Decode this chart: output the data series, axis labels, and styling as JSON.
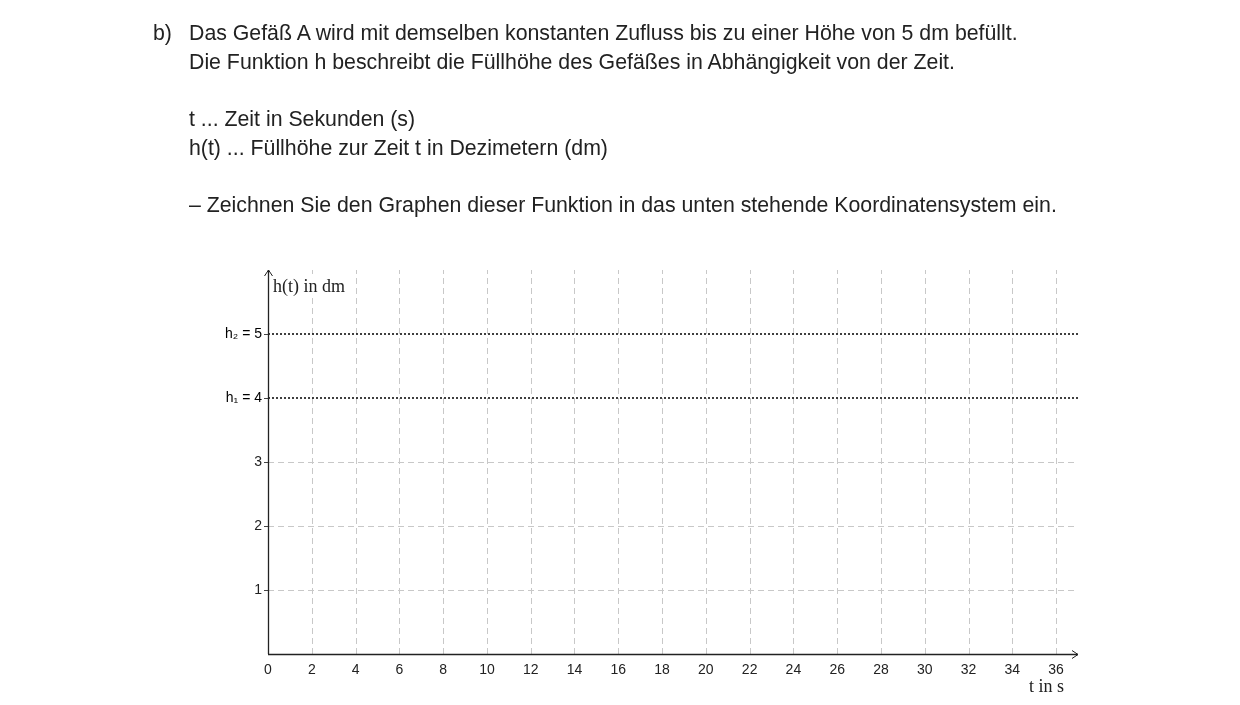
{
  "chart_data": {
    "type": "line",
    "annotations": [
      "b)",
      "Das Gefäß A wird mit demselben konstanten Zufluss bis zu einer Höhe von 5 dm befüllt.",
      "Die Funktion h beschreibt die Füllhöhe des Gefäßes in Abhängigkeit von der Zeit.",
      "t ... Zeit in Sekunden (s)",
      "h(t) ... Füllhöhe zur Zeit t in Dezimetern (dm)",
      "– Zeichnen Sie den Graphen dieser Funktion in das unten stehende Koordinatensystem ein."
    ],
    "xlabel": "t in s",
    "ylabel": "h(t) in dm",
    "xlim": [
      0,
      37
    ],
    "xticks": [
      0,
      2,
      4,
      6,
      8,
      10,
      12,
      14,
      16,
      18,
      20,
      22,
      24,
      26,
      28,
      30,
      32,
      34,
      36
    ],
    "ylim": [
      0,
      6
    ],
    "yticks": [
      1,
      2,
      3
    ],
    "grid": true,
    "ref_lines": [
      {
        "axis": "y",
        "value": 5,
        "label": "h₂ = 5",
        "color": "#000000",
        "line_style": "dotted"
      },
      {
        "axis": "y",
        "value": 4,
        "label": "h₁ = 4",
        "color": "#000000",
        "line_style": "dotted"
      }
    ]
  }
}
